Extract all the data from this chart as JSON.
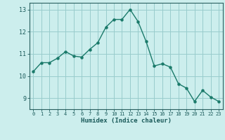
{
  "x": [
    0,
    1,
    2,
    3,
    4,
    5,
    6,
    7,
    8,
    9,
    10,
    11,
    12,
    13,
    14,
    15,
    16,
    17,
    18,
    19,
    20,
    21,
    22,
    23
  ],
  "y": [
    10.2,
    10.6,
    10.6,
    10.8,
    11.1,
    10.9,
    10.85,
    11.2,
    11.5,
    12.2,
    12.55,
    12.55,
    13.0,
    12.45,
    11.55,
    10.45,
    10.55,
    10.4,
    9.65,
    9.45,
    8.85,
    9.35,
    9.05,
    8.85
  ],
  "xlabel": "Humidex (Indice chaleur)",
  "xlim": [
    -0.5,
    23.5
  ],
  "ylim": [
    8.5,
    13.3
  ],
  "yticks": [
    9,
    10,
    11,
    12,
    13
  ],
  "xticks": [
    0,
    1,
    2,
    3,
    4,
    5,
    6,
    7,
    8,
    9,
    10,
    11,
    12,
    13,
    14,
    15,
    16,
    17,
    18,
    19,
    20,
    21,
    22,
    23
  ],
  "line_color": "#1a7a6a",
  "bg_color": "#cceeed",
  "grid_color": "#99cccc",
  "axis_color": "#2a6060",
  "text_color": "#1a5a5a",
  "marker_size": 2.2,
  "line_width": 1.0
}
